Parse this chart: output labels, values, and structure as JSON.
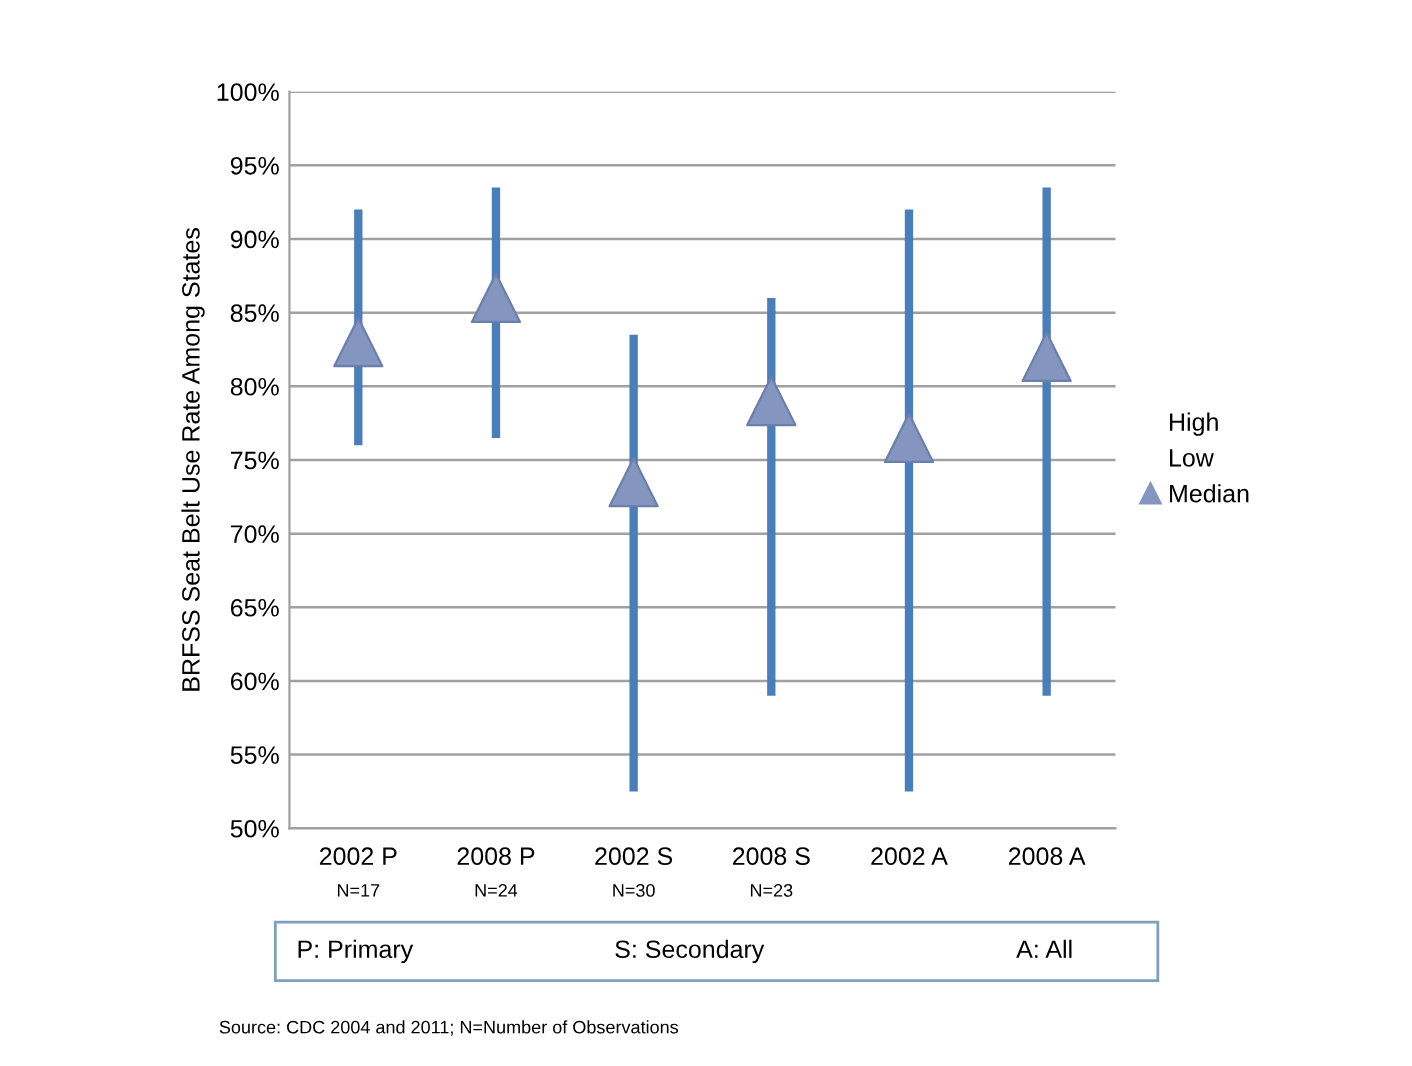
{
  "chart_data": {
    "type": "scatter",
    "ylabel": "BRFSS Seat Belt Use Rate Among States",
    "categories": [
      "2002 P\nN=17",
      "2008 P\nN=24",
      "2002 S\nN=30",
      "2008 S\nN=23",
      "2002 A",
      "2008 A"
    ],
    "series": [
      {
        "name": "Median",
        "color": "#8496c0",
        "marker": "triangle",
        "values": [
          83,
          86,
          73.5,
          79,
          76.5,
          82
        ],
        "errors": [
          [
            76,
            92
          ],
          [
            76.5,
            93.5
          ],
          [
            52.5,
            83.5
          ],
          [
            59,
            86
          ],
          [
            52.5,
            92
          ],
          [
            59,
            93.5
          ]
        ]
      }
    ],
    "ylim": [
      50,
      100
    ],
    "yticks": [
      {
        "value": 50,
        "label": "50%"
      },
      {
        "value": 55,
        "label": "55%"
      },
      {
        "value": 60,
        "label": "60%"
      },
      {
        "value": 65,
        "label": "65%"
      },
      {
        "value": 70,
        "label": "70%"
      },
      {
        "value": 75,
        "label": "75%"
      },
      {
        "value": 80,
        "label": "80%"
      },
      {
        "value": 85,
        "label": "85%"
      },
      {
        "value": 90,
        "label": "90%"
      },
      {
        "value": 95,
        "label": "95%"
      },
      {
        "value": 100,
        "label": "100%"
      }
    ],
    "grid": "y",
    "legend": "right",
    "annotations": [
      "High",
      "Low",
      "P: Primary",
      "S: Secondary",
      "A: All",
      "Source: CDC 2004 and 2011; N=Number of Observations"
    ]
  }
}
